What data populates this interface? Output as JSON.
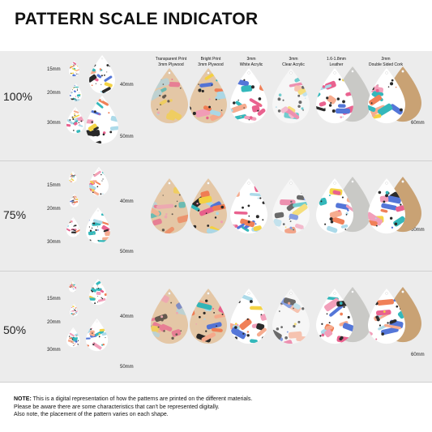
{
  "title": "PATTERN SCALE INDICATOR",
  "materials": [
    {
      "line1": "Transparent Print",
      "line2": "3mm Plywood"
    },
    {
      "line1": "Bright Print",
      "line2": "3mm Plywood"
    },
    {
      "line1": "3mm",
      "line2": "White Acrylic"
    },
    {
      "line1": "3mm",
      "line2": "Clear Acrylic"
    },
    {
      "line1": "1.6-1.8mm",
      "line2": "Leather"
    },
    {
      "line1": "2mm",
      "line2": "Double Sided Cork"
    }
  ],
  "scales": [
    "100%",
    "75%",
    "50%"
  ],
  "sizes": {
    "s15": "15mm",
    "s20": "20mm",
    "s30": "30mm",
    "s40": "40mm",
    "s50": "50mm",
    "s60": "60mm"
  },
  "note": {
    "label": "NOTE:",
    "line1": " This is a digital representation of how the patterns are printed on the different materials.",
    "line2": "Please be aware there are some characteristics that can't be represented digitally.",
    "line3": "Also note, the placement of the pattern varies on each shape."
  },
  "colors": {
    "band": "#ececec",
    "plywood": "#e4c7a6",
    "white_acrylic": "#ffffff",
    "clear_acrylic": "#f6f6f6",
    "leather": "#c9c9c6",
    "cork": "#c9a274",
    "pattern": [
      "#f29ab7",
      "#f6a88a",
      "#2ab5b8",
      "#f4d13c",
      "#4b6fd6",
      "#1f1f1f",
      "#f07a50",
      "#a8d8e8",
      "#e85a8a"
    ]
  }
}
